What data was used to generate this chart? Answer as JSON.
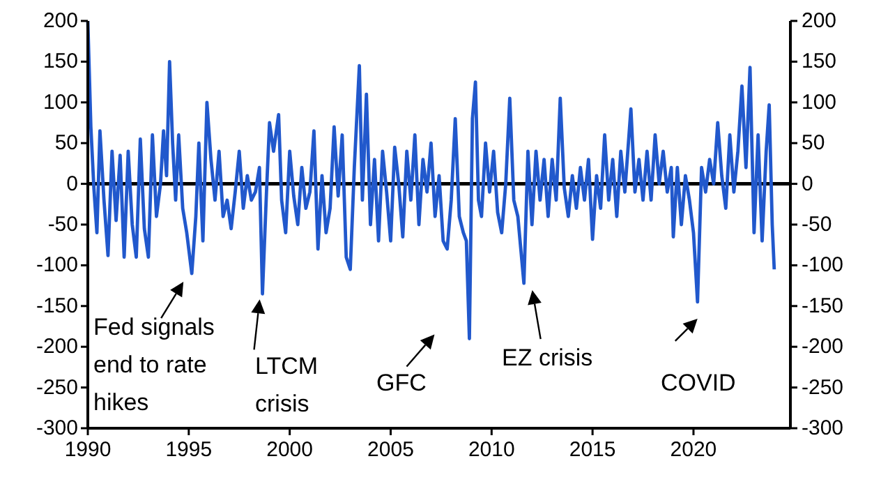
{
  "chart_data": {
    "type": "line",
    "x": [
      1990.0,
      1990.15,
      1990.3,
      1990.45,
      1990.6,
      1990.8,
      1991.0,
      1991.2,
      1991.4,
      1991.6,
      1991.8,
      1992.0,
      1992.2,
      1992.4,
      1992.6,
      1992.8,
      1993.0,
      1993.2,
      1993.4,
      1993.6,
      1993.75,
      1993.9,
      1994.05,
      1994.2,
      1994.35,
      1994.5,
      1994.7,
      1994.9,
      1995.15,
      1995.35,
      1995.5,
      1995.7,
      1995.9,
      1996.1,
      1996.3,
      1996.5,
      1996.7,
      1996.9,
      1997.1,
      1997.3,
      1997.5,
      1997.7,
      1997.9,
      1998.1,
      1998.3,
      1998.5,
      1998.65,
      1998.85,
      1999.0,
      1999.2,
      1999.45,
      1999.6,
      1999.8,
      2000.0,
      2000.2,
      2000.4,
      2000.6,
      2000.8,
      2001.0,
      2001.2,
      2001.4,
      2001.6,
      2001.8,
      2002.0,
      2002.2,
      2002.4,
      2002.6,
      2002.8,
      2003.0,
      2003.2,
      2003.45,
      2003.6,
      2003.8,
      2004.0,
      2004.2,
      2004.4,
      2004.6,
      2004.8,
      2005.0,
      2005.2,
      2005.4,
      2005.6,
      2005.8,
      2006.0,
      2006.2,
      2006.4,
      2006.6,
      2006.8,
      2007.0,
      2007.2,
      2007.4,
      2007.6,
      2007.8,
      2008.0,
      2008.2,
      2008.4,
      2008.6,
      2008.75,
      2008.9,
      2009.05,
      2009.2,
      2009.35,
      2009.5,
      2009.7,
      2009.9,
      2010.1,
      2010.3,
      2010.5,
      2010.7,
      2010.9,
      2011.1,
      2011.3,
      2011.6,
      2011.8,
      2012.0,
      2012.2,
      2012.4,
      2012.6,
      2012.8,
      2013.0,
      2013.2,
      2013.4,
      2013.6,
      2013.8,
      2014.0,
      2014.2,
      2014.4,
      2014.6,
      2014.8,
      2015.0,
      2015.2,
      2015.4,
      2015.6,
      2015.8,
      2016.0,
      2016.2,
      2016.4,
      2016.6,
      2016.9,
      2017.1,
      2017.3,
      2017.5,
      2017.7,
      2017.9,
      2018.1,
      2018.3,
      2018.5,
      2018.7,
      2018.9,
      2019.0,
      2019.2,
      2019.4,
      2019.6,
      2019.8,
      2020.0,
      2020.2,
      2020.4,
      2020.6,
      2020.8,
      2021.0,
      2021.2,
      2021.4,
      2021.6,
      2021.8,
      2022.0,
      2022.2,
      2022.4,
      2022.6,
      2022.8,
      2023.0,
      2023.2,
      2023.4,
      2023.6,
      2023.75,
      2023.9,
      2024.0
    ],
    "series": [
      {
        "color": "#2158cc",
        "values": [
          200,
          70,
          -5,
          -60,
          65,
          -20,
          -88,
          40,
          -45,
          35,
          -90,
          40,
          -50,
          -90,
          55,
          -55,
          -90,
          60,
          -40,
          0,
          65,
          10,
          150,
          50,
          -20,
          60,
          -30,
          -60,
          -110,
          -40,
          50,
          -70,
          100,
          30,
          -20,
          40,
          -40,
          -20,
          -55,
          -10,
          40,
          -30,
          10,
          -20,
          -10,
          20,
          -135,
          -10,
          75,
          40,
          85,
          -20,
          -60,
          40,
          -15,
          -50,
          20,
          -30,
          -10,
          65,
          -80,
          10,
          -60,
          -30,
          70,
          -15,
          60,
          -90,
          -105,
          20,
          145,
          -20,
          110,
          -50,
          30,
          -70,
          40,
          -10,
          -70,
          45,
          0,
          -65,
          40,
          -20,
          60,
          -50,
          30,
          -10,
          50,
          -40,
          10,
          -70,
          -80,
          -20,
          80,
          -40,
          -60,
          -70,
          -190,
          80,
          125,
          -20,
          -40,
          50,
          -10,
          40,
          -35,
          -60,
          0,
          105,
          -20,
          -40,
          -122,
          40,
          -50,
          40,
          -20,
          30,
          -40,
          30,
          -20,
          105,
          -5,
          -40,
          10,
          -30,
          20,
          -20,
          30,
          -68,
          10,
          -30,
          60,
          -20,
          30,
          -40,
          40,
          -10,
          92,
          -10,
          30,
          -20,
          40,
          -20,
          60,
          0,
          40,
          -10,
          20,
          -65,
          20,
          -50,
          10,
          -20,
          -60,
          -145,
          20,
          -10,
          30,
          0,
          75,
          10,
          -30,
          60,
          -10,
          40,
          120,
          20,
          143,
          -60,
          60,
          -70,
          40,
          97,
          -50,
          -105
        ]
      }
    ],
    "xlim": [
      1990,
      2024.8
    ],
    "xticks": [
      1990,
      1995,
      2000,
      2005,
      2010,
      2015,
      2020
    ],
    "ylim": [
      -300,
      200
    ],
    "yticks": [
      -300,
      -250,
      -200,
      -150,
      -100,
      -50,
      0,
      50,
      100,
      150,
      200
    ],
    "y2lim": [
      -300,
      200
    ],
    "y2ticks": [
      -300,
      -250,
      -200,
      -150,
      -100,
      -50,
      0,
      50,
      100,
      150,
      200
    ],
    "ref_lines": [
      {
        "axis": "y",
        "value": 0,
        "color": "#000000"
      }
    ],
    "annotations": [
      {
        "text": "Fed signals end to rate hikes",
        "x": 1995.15,
        "y": -110
      },
      {
        "text": "LTCM crisis",
        "x": 1998.65,
        "y": -135
      },
      {
        "text": "GFC",
        "x": 2008.9,
        "y": -190
      },
      {
        "text": "EZ crisis",
        "x": 2011.6,
        "y": -122
      },
      {
        "text": "COVID",
        "x": 2020.2,
        "y": -145
      }
    ],
    "line_style": "solid"
  }
}
